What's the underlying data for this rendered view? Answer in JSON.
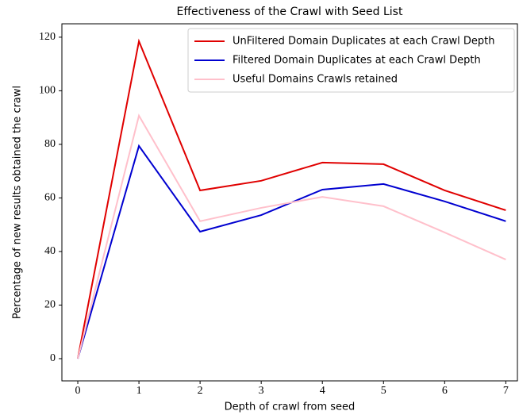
{
  "chart_data": {
    "type": "line",
    "title": "Effectiveness of the Crawl with Seed List",
    "xlabel": "Depth of crawl from seed",
    "ylabel": "Percentage of new results obtained the crawl",
    "x": [
      0,
      1,
      2,
      3,
      4,
      5,
      6,
      7
    ],
    "series": [
      {
        "name": "UnFiltered Domain Duplicates at each Crawl Depth",
        "color": "#e00000",
        "values": [
          0,
          118.5,
          62.8,
          66.4,
          73.2,
          72.6,
          62.8,
          55.4
        ]
      },
      {
        "name": "Filtered Domain Duplicates at each Crawl Depth",
        "color": "#0000d0",
        "values": [
          0,
          79.4,
          47.4,
          53.6,
          63.1,
          65.2,
          58.7,
          51.3
        ]
      },
      {
        "name": "Useful Domains Crawls retained",
        "color": "#ffc0cb",
        "values": [
          0,
          90.7,
          51.3,
          56.3,
          60.4,
          56.9,
          47.1,
          37.0
        ]
      }
    ],
    "xlim": [
      -0.26,
      7.19
    ],
    "xticks": [
      0,
      1,
      2,
      3,
      4,
      5,
      6,
      7
    ],
    "ylim": [
      -8.3,
      125
    ],
    "yticks": [
      0,
      20,
      40,
      60,
      80,
      100,
      120
    ],
    "legend": "upper right"
  }
}
